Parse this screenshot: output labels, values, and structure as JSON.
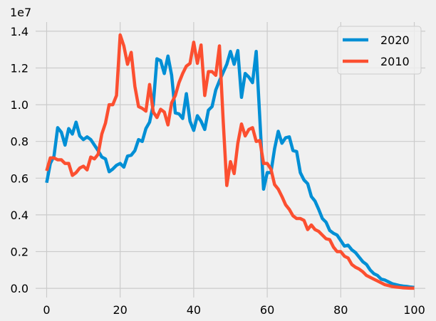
{
  "chart_data": {
    "type": "line",
    "y_offset_label": "1e7",
    "xlim": [
      -3,
      103
    ],
    "ylim": [
      -0.05,
      1.45
    ],
    "x_ticks": [
      0,
      20,
      40,
      60,
      80,
      100
    ],
    "y_ticks": [
      0.0,
      0.2,
      0.4,
      0.6,
      0.8,
      1.0,
      1.2,
      1.4
    ],
    "x_tick_labels": [
      "0",
      "20",
      "40",
      "60",
      "80",
      "100"
    ],
    "y_tick_labels": [
      "0.0",
      "0.2",
      "0.4",
      "0.6",
      "0.8",
      "1.0",
      "1.2",
      "1.4"
    ],
    "grid": true,
    "legend_position": "top-right",
    "x": [
      0,
      1,
      2,
      3,
      4,
      5,
      6,
      7,
      8,
      9,
      10,
      11,
      12,
      13,
      14,
      15,
      16,
      17,
      18,
      19,
      20,
      21,
      22,
      23,
      24,
      25,
      26,
      27,
      28,
      29,
      30,
      31,
      32,
      33,
      34,
      35,
      36,
      37,
      38,
      39,
      40,
      41,
      42,
      43,
      44,
      45,
      46,
      47,
      48,
      49,
      50,
      51,
      52,
      53,
      54,
      55,
      56,
      57,
      58,
      59,
      60,
      61,
      62,
      63,
      64,
      65,
      66,
      67,
      68,
      69,
      70,
      71,
      72,
      73,
      74,
      75,
      76,
      77,
      78,
      79,
      80,
      81,
      82,
      83,
      84,
      85,
      86,
      87,
      88,
      89,
      90,
      91,
      92,
      93,
      94,
      95,
      96,
      97,
      98,
      99,
      100
    ],
    "series": [
      {
        "name": "2020",
        "color": "#008fd5",
        "values": [
          0.575,
          0.68,
          0.72,
          0.875,
          0.85,
          0.78,
          0.87,
          0.84,
          0.905,
          0.83,
          0.81,
          0.825,
          0.81,
          0.78,
          0.75,
          0.715,
          0.705,
          0.635,
          0.65,
          0.67,
          0.68,
          0.66,
          0.72,
          0.725,
          0.75,
          0.81,
          0.8,
          0.87,
          0.905,
          1.0,
          1.25,
          1.24,
          1.17,
          1.265,
          1.16,
          0.955,
          0.95,
          0.925,
          1.06,
          0.91,
          0.86,
          0.94,
          0.91,
          0.865,
          0.97,
          0.99,
          1.08,
          1.13,
          1.175,
          1.22,
          1.29,
          1.22,
          1.295,
          1.04,
          1.17,
          1.15,
          1.12,
          1.29,
          0.92,
          0.54,
          0.63,
          0.63,
          0.76,
          0.855,
          0.79,
          0.82,
          0.825,
          0.75,
          0.745,
          0.63,
          0.59,
          0.57,
          0.5,
          0.475,
          0.43,
          0.38,
          0.36,
          0.315,
          0.3,
          0.29,
          0.26,
          0.23,
          0.235,
          0.21,
          0.195,
          0.17,
          0.145,
          0.13,
          0.1,
          0.08,
          0.07,
          0.05,
          0.045,
          0.035,
          0.025,
          0.02,
          0.015,
          0.012,
          0.01,
          0.007,
          0.005
        ]
      },
      {
        "name": "2010",
        "color": "#fc4f30",
        "values": [
          0.64,
          0.71,
          0.71,
          0.7,
          0.7,
          0.68,
          0.68,
          0.615,
          0.63,
          0.655,
          0.665,
          0.645,
          0.715,
          0.705,
          0.73,
          0.84,
          0.9,
          1.0,
          1.0,
          1.05,
          1.38,
          1.32,
          1.22,
          1.285,
          1.1,
          0.99,
          0.98,
          0.965,
          1.11,
          0.96,
          0.93,
          0.975,
          0.96,
          0.89,
          1.01,
          1.05,
          1.12,
          1.17,
          1.21,
          1.225,
          1.34,
          1.225,
          1.325,
          1.05,
          1.18,
          1.18,
          1.16,
          1.32,
          0.92,
          0.56,
          0.69,
          0.625,
          0.79,
          0.895,
          0.83,
          0.865,
          0.875,
          0.8,
          0.805,
          0.68,
          0.68,
          0.65,
          0.565,
          0.54,
          0.5,
          0.455,
          0.43,
          0.395,
          0.38,
          0.38,
          0.37,
          0.32,
          0.345,
          0.32,
          0.31,
          0.29,
          0.27,
          0.265,
          0.225,
          0.2,
          0.2,
          0.175,
          0.165,
          0.13,
          0.115,
          0.105,
          0.09,
          0.07,
          0.06,
          0.05,
          0.04,
          0.03,
          0.02,
          0.015,
          0.01,
          0.007,
          0.005,
          0.003,
          0.002,
          0.001,
          0.001
        ]
      }
    ]
  }
}
